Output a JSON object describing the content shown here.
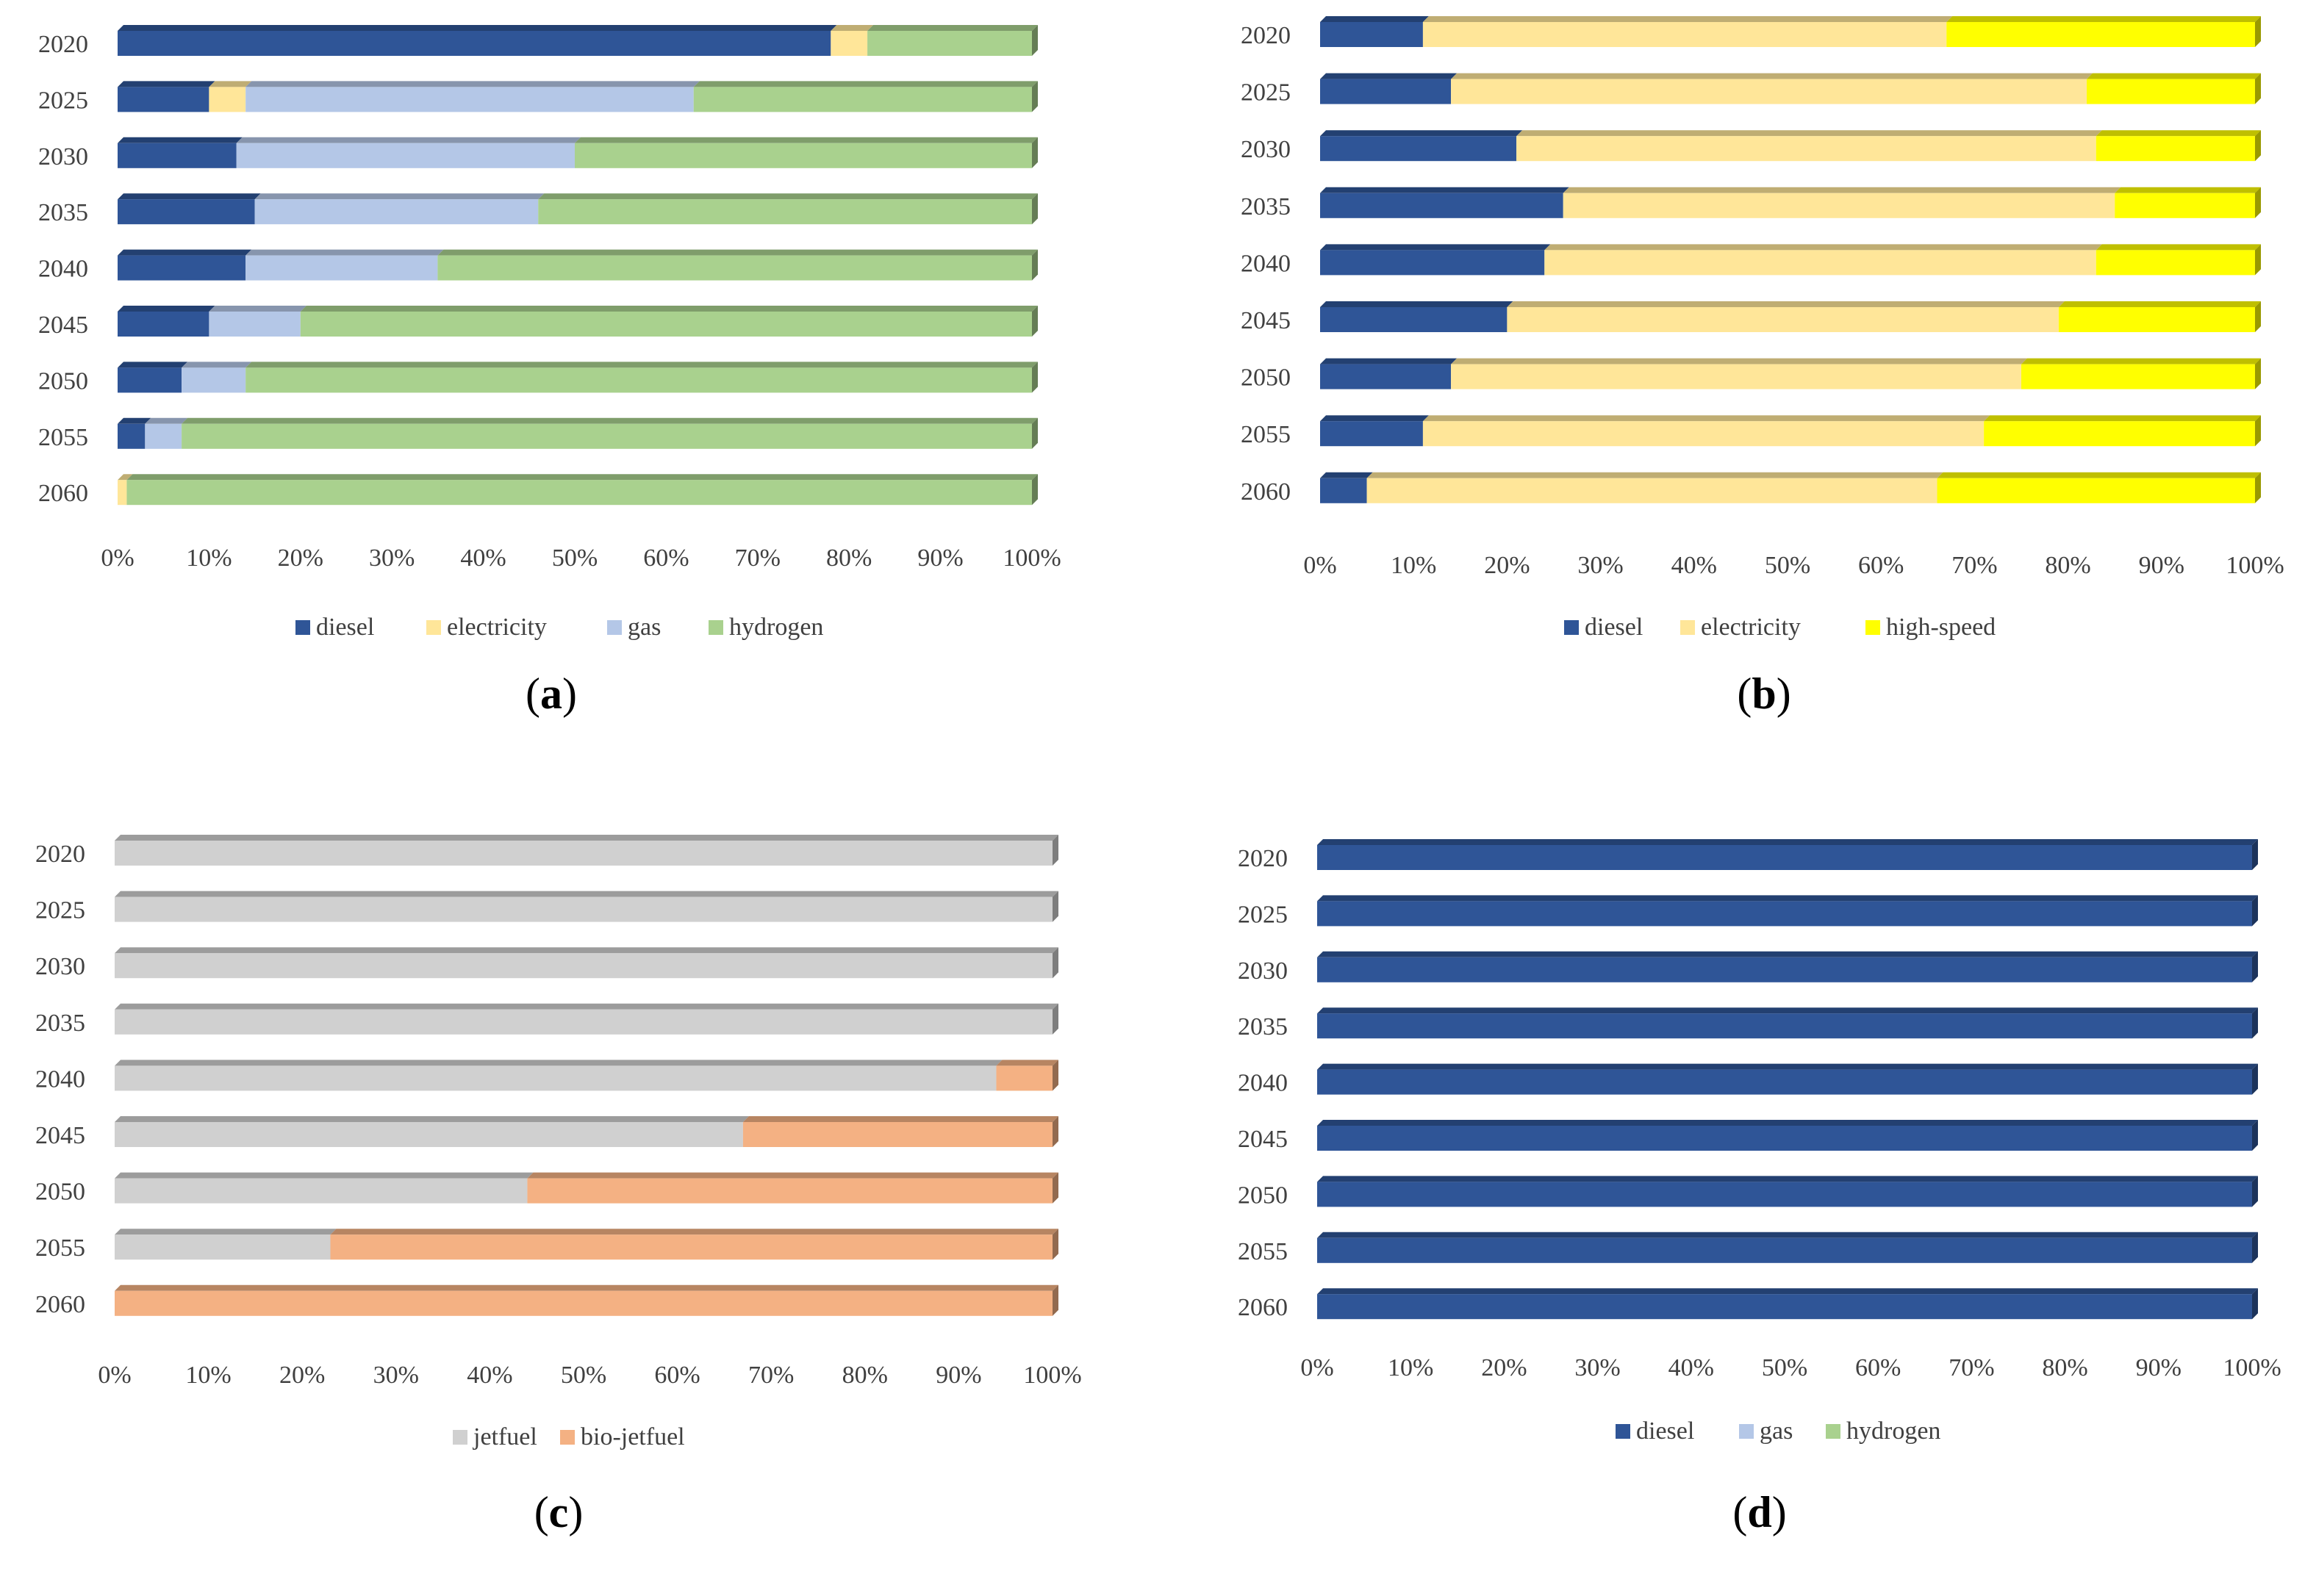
{
  "chart_data": [
    {
      "type": "bar",
      "orientation": "horizontal",
      "stacked": "percent",
      "caption": "a",
      "categories": [
        "2020",
        "2025",
        "2030",
        "2035",
        "2040",
        "2045",
        "2050",
        "2055",
        "2060"
      ],
      "x_ticks": [
        "0%",
        "10%",
        "20%",
        "30%",
        "40%",
        "50%",
        "60%",
        "70%",
        "80%",
        "90%",
        "100%"
      ],
      "xlim": [
        0,
        100
      ],
      "legend_position": "bottom",
      "series": [
        {
          "name": "diesel",
          "color": "#2f5597",
          "values": [
            78,
            10,
            13,
            15,
            14,
            10,
            7,
            3,
            0
          ]
        },
        {
          "name": "electricity",
          "color": "#ffe699",
          "values": [
            4,
            4,
            0,
            0,
            0,
            0,
            0,
            0,
            1
          ]
        },
        {
          "name": "gas",
          "color": "#b4c7e7",
          "values": [
            0,
            49,
            37,
            31,
            21,
            10,
            7,
            4,
            0
          ]
        },
        {
          "name": "hydrogen",
          "color": "#a9d18e",
          "values": [
            18,
            37,
            50,
            54,
            65,
            80,
            86,
            93,
            99
          ]
        }
      ]
    },
    {
      "type": "bar",
      "orientation": "horizontal",
      "stacked": "percent",
      "caption": "b",
      "categories": [
        "2020",
        "2025",
        "2030",
        "2035",
        "2040",
        "2045",
        "2050",
        "2055",
        "2060"
      ],
      "x_ticks": [
        "0%",
        "10%",
        "20%",
        "30%",
        "40%",
        "50%",
        "60%",
        "70%",
        "80%",
        "90%",
        "100%"
      ],
      "xlim": [
        0,
        100
      ],
      "legend_position": "bottom",
      "series": [
        {
          "name": "diesel",
          "color": "#2f5597",
          "values": [
            11,
            14,
            21,
            26,
            24,
            20,
            14,
            11,
            5
          ]
        },
        {
          "name": "electricity",
          "color": "#ffe699",
          "values": [
            56,
            68,
            62,
            59,
            59,
            59,
            61,
            60,
            61
          ]
        },
        {
          "name": "high-speed",
          "color": "#ffff00",
          "values": [
            33,
            18,
            17,
            15,
            17,
            21,
            25,
            29,
            34
          ]
        }
      ]
    },
    {
      "type": "bar",
      "orientation": "horizontal",
      "stacked": "percent",
      "caption": "c",
      "categories": [
        "2020",
        "2025",
        "2030",
        "2035",
        "2040",
        "2045",
        "2050",
        "2055",
        "2060"
      ],
      "x_ticks": [
        "0%",
        "10%",
        "20%",
        "30%",
        "40%",
        "50%",
        "60%",
        "70%",
        "80%",
        "90%",
        "100%"
      ],
      "xlim": [
        0,
        100
      ],
      "legend_position": "bottom",
      "series": [
        {
          "name": "jetfuel",
          "color": "#d0d0d0",
          "values": [
            100,
            100,
            100,
            100,
            94,
            67,
            44,
            23,
            0
          ]
        },
        {
          "name": "bio-jetfuel",
          "color": "#f4b183",
          "values": [
            0,
            0,
            0,
            0,
            6,
            33,
            56,
            77,
            100
          ]
        }
      ]
    },
    {
      "type": "bar",
      "orientation": "horizontal",
      "stacked": "percent",
      "caption": "d",
      "categories": [
        "2020",
        "2025",
        "2030",
        "2035",
        "2040",
        "2045",
        "2050",
        "2055",
        "2060"
      ],
      "x_ticks": [
        "0%",
        "10%",
        "20%",
        "30%",
        "40%",
        "50%",
        "60%",
        "70%",
        "80%",
        "90%",
        "100%"
      ],
      "xlim": [
        0,
        100
      ],
      "legend_position": "bottom",
      "series": [
        {
          "name": "diesel",
          "color": "#2f5597",
          "values": [
            100,
            100,
            100,
            100,
            100,
            100,
            100,
            100,
            100
          ]
        },
        {
          "name": "gas",
          "color": "#b4c7e7",
          "values": [
            0,
            0,
            0,
            0,
            0,
            0,
            0,
            0,
            0
          ]
        },
        {
          "name": "hydrogen",
          "color": "#a9d18e",
          "values": [
            0,
            0,
            0,
            0,
            0,
            0,
            0,
            0,
            0
          ]
        }
      ]
    }
  ]
}
